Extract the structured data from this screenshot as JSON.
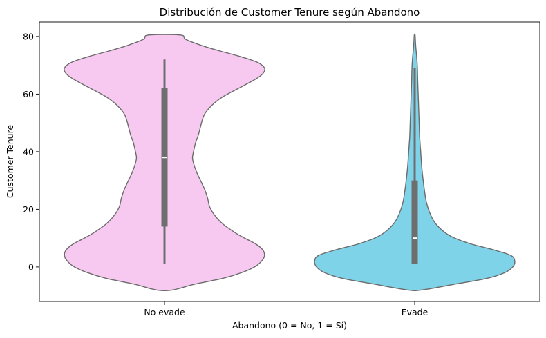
{
  "chart_data": {
    "type": "violin",
    "title": "Distribución de Customer Tenure según Abandono",
    "xlabel": "Abandono (0 = No, 1 = Sí)",
    "ylabel": "Customer Tenure",
    "categories": [
      "No evade",
      "Evade"
    ],
    "ylim": [
      -12,
      85
    ],
    "yticks": [
      0,
      20,
      40,
      60,
      80
    ],
    "grid": false,
    "legend": "none",
    "series": [
      {
        "category": "No evade",
        "color": "#f7c9f1",
        "box": {
          "whisker_low": 1,
          "q1": 14,
          "median": 38,
          "q3": 62,
          "whisker_high": 72
        },
        "profile": [
          [
            -8,
            0.08
          ],
          [
            -6,
            0.3
          ],
          [
            -4,
            0.58
          ],
          [
            -2,
            0.77
          ],
          [
            0,
            0.9
          ],
          [
            2,
            0.97
          ],
          [
            4,
            1.0
          ],
          [
            6,
            0.98
          ],
          [
            8,
            0.91
          ],
          [
            10,
            0.8
          ],
          [
            12,
            0.7
          ],
          [
            15,
            0.58
          ],
          [
            18,
            0.5
          ],
          [
            21,
            0.45
          ],
          [
            24,
            0.43
          ],
          [
            27,
            0.4
          ],
          [
            30,
            0.36
          ],
          [
            33,
            0.32
          ],
          [
            36,
            0.29
          ],
          [
            38,
            0.28
          ],
          [
            40,
            0.29
          ],
          [
            43,
            0.31
          ],
          [
            46,
            0.34
          ],
          [
            50,
            0.37
          ],
          [
            53,
            0.4
          ],
          [
            56,
            0.47
          ],
          [
            59,
            0.58
          ],
          [
            62,
            0.74
          ],
          [
            65,
            0.9
          ],
          [
            67,
            0.98
          ],
          [
            69,
            1.0
          ],
          [
            71,
            0.93
          ],
          [
            73,
            0.76
          ],
          [
            75,
            0.55
          ],
          [
            77,
            0.36
          ],
          [
            79,
            0.21
          ],
          [
            80.5,
            0.16
          ]
        ]
      },
      {
        "category": "Evade",
        "color": "#7fd3e8",
        "box": {
          "whisker_low": 1,
          "q1": 1,
          "median": 10,
          "q3": 30,
          "whisker_high": 69
        },
        "profile": [
          [
            -8,
            0.07
          ],
          [
            -6,
            0.4
          ],
          [
            -4,
            0.72
          ],
          [
            -2,
            0.9
          ],
          [
            0,
            0.98
          ],
          [
            2,
            1.0
          ],
          [
            4,
            0.96
          ],
          [
            6,
            0.78
          ],
          [
            8,
            0.56
          ],
          [
            10,
            0.4
          ],
          [
            12,
            0.3
          ],
          [
            15,
            0.21
          ],
          [
            18,
            0.16
          ],
          [
            22,
            0.12
          ],
          [
            26,
            0.1
          ],
          [
            30,
            0.085
          ],
          [
            35,
            0.07
          ],
          [
            40,
            0.06
          ],
          [
            45,
            0.05
          ],
          [
            50,
            0.045
          ],
          [
            55,
            0.04
          ],
          [
            60,
            0.035
          ],
          [
            65,
            0.03
          ],
          [
            68,
            0.028
          ],
          [
            70,
            0.026
          ],
          [
            73,
            0.02
          ],
          [
            76,
            0.012
          ],
          [
            78,
            0.008
          ],
          [
            80.5,
            0.004
          ]
        ]
      }
    ]
  }
}
